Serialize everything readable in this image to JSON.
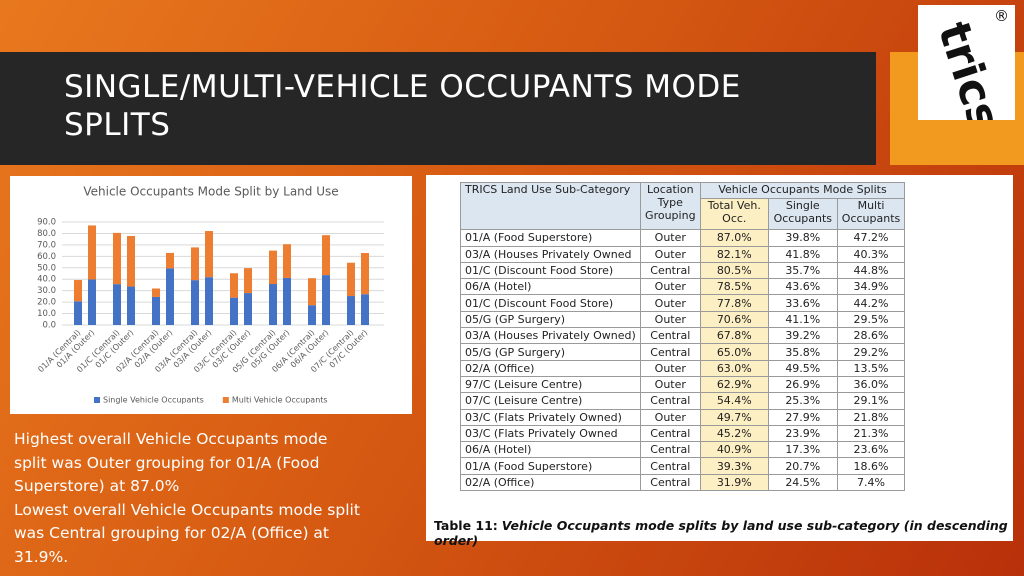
{
  "header": {
    "title": "SINGLE/MULTI-VEHICLE OCCUPANTS MODE SPLITS"
  },
  "logo": {
    "text": "trics",
    "mark": "®"
  },
  "summary": [
    "Highest overall Vehicle Occupants mode split was Outer grouping for 01/A (Food Superstore) at 87.0%",
    "Lowest overall Vehicle Occupants mode split was Central grouping for 02/A (Office) at 31.9%."
  ],
  "chart_data": {
    "type": "stacked_bar",
    "title": "Vehicle Occupants Mode Split by Land Use",
    "categories": [
      "01/A (Central)",
      "01/A (Outer)",
      "01/C (Central)",
      "01/C (Outer)",
      "02/A (Central)",
      "02/A (Outer)",
      "03/A (Central)",
      "03/A (Outer)",
      "03/C (Central)",
      "03/C (Outer)",
      "05/G (Central)",
      "05/G (Outer)",
      "06/A (Central)",
      "06/A (Outer)",
      "07/C (Central)",
      "07/C (Outer)"
    ],
    "series": [
      {
        "name": "Single Vehicle Occupants",
        "color": "#4472c4",
        "values": [
          20.7,
          39.8,
          35.7,
          33.6,
          24.5,
          49.5,
          39.2,
          41.8,
          23.9,
          27.9,
          35.8,
          41.1,
          17.3,
          43.6,
          25.3,
          26.9
        ]
      },
      {
        "name": "Multi Vehicle Occupants",
        "color": "#ed7d31",
        "values": [
          18.6,
          47.2,
          44.8,
          44.2,
          7.4,
          13.5,
          28.6,
          40.3,
          21.3,
          21.8,
          29.2,
          29.5,
          23.6,
          34.9,
          29.1,
          36.0
        ]
      }
    ],
    "ylim": [
      0,
      90
    ],
    "yticks": [
      {
        "value": 0,
        "label": "0.0"
      },
      {
        "value": 10,
        "label": "10.0"
      },
      {
        "value": 20,
        "label": "20.0"
      },
      {
        "value": 30,
        "label": "30.0"
      },
      {
        "value": 40,
        "label": "40.0"
      },
      {
        "value": 50,
        "label": "50.0"
      },
      {
        "value": 60,
        "label": "60.0"
      },
      {
        "value": 70,
        "label": "70.0"
      },
      {
        "value": 80,
        "label": "80.0"
      },
      {
        "value": 90,
        "label": "90.0"
      }
    ],
    "grid": true,
    "legend": "bottom"
  },
  "table": {
    "header_top": [
      "TRICS Land Use Sub-Category",
      "Location Type Grouping",
      "Vehicle Occupants Mode Splits"
    ],
    "subheaders": [
      "Total Veh. Occ.",
      "Single Occupants",
      "Multi Occupants"
    ],
    "rows": [
      [
        "01/A (Food Superstore)",
        "Outer",
        "87.0%",
        "39.8%",
        "47.2%"
      ],
      [
        "03/A (Houses Privately Owned",
        "Outer",
        "82.1%",
        "41.8%",
        "40.3%"
      ],
      [
        "01/C (Discount Food Store)",
        "Central",
        "80.5%",
        "35.7%",
        "44.8%"
      ],
      [
        "06/A (Hotel)",
        "Outer",
        "78.5%",
        "43.6%",
        "34.9%"
      ],
      [
        "01/C (Discount Food Store)",
        "Outer",
        "77.8%",
        "33.6%",
        "44.2%"
      ],
      [
        "05/G (GP Surgery)",
        "Outer",
        "70.6%",
        "41.1%",
        "29.5%"
      ],
      [
        "03/A (Houses Privately Owned)",
        "Central",
        "67.8%",
        "39.2%",
        "28.6%"
      ],
      [
        "05/G (GP Surgery)",
        "Central",
        "65.0%",
        "35.8%",
        "29.2%"
      ],
      [
        "02/A (Office)",
        "Outer",
        "63.0%",
        "49.5%",
        "13.5%"
      ],
      [
        "97/C (Leisure Centre)",
        "Outer",
        "62.9%",
        "26.9%",
        "36.0%"
      ],
      [
        "07/C (Leisure Centre)",
        "Central",
        "54.4%",
        "25.3%",
        "29.1%"
      ],
      [
        "03/C (Flats Privately Owned)",
        "Outer",
        "49.7%",
        "27.9%",
        "21.8%"
      ],
      [
        "03/C (Flats Privately Owned",
        "Central",
        "45.2%",
        "23.9%",
        "21.3%"
      ],
      [
        "06/A (Hotel)",
        "Central",
        "40.9%",
        "17.3%",
        "23.6%"
      ],
      [
        "01/A (Food Superstore)",
        "Central",
        "39.3%",
        "20.7%",
        "18.6%"
      ],
      [
        "02/A (Office)",
        "Central",
        "31.9%",
        "24.5%",
        "7.4%"
      ]
    ],
    "caption": {
      "label": "Table 11:",
      "text": "Vehicle Occupants mode splits by land use sub-category (in descending order)"
    }
  }
}
